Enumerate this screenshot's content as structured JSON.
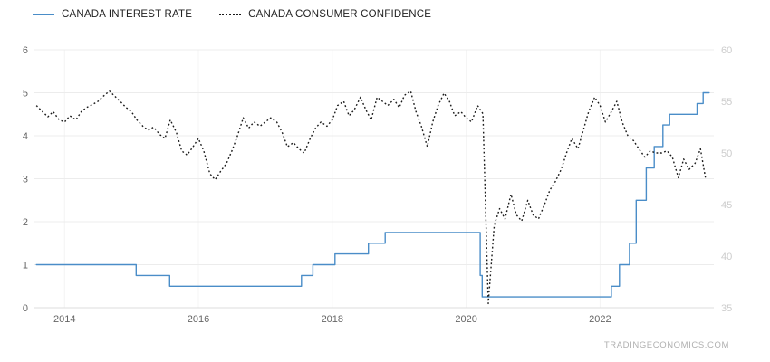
{
  "legend": {
    "items": [
      {
        "label": "CANADA INTEREST RATE",
        "color": "#4a8dc8",
        "style": "solid"
      },
      {
        "label": "CANADA CONSUMER CONFIDENCE",
        "color": "#1a1a1a",
        "style": "dotted"
      }
    ]
  },
  "watermark": "TRADINGECONOMICS.COM",
  "colors": {
    "background": "#ffffff",
    "grid": "#ececec",
    "vgrid": "#f4f4f4",
    "axis_text": "#666666",
    "right_axis_text": "#cccccc",
    "baseline": "#dddddd"
  },
  "chart_data": {
    "type": "line",
    "x_range": [
      2013.55,
      2023.7
    ],
    "x_ticks": [
      2014,
      2016,
      2018,
      2020,
      2022
    ],
    "left_axis": {
      "ticks": [
        0,
        1,
        2,
        3,
        4,
        5,
        6
      ],
      "range": [
        0,
        6
      ]
    },
    "right_axis": {
      "ticks": [
        35,
        40,
        45,
        50,
        55,
        60
      ],
      "range": [
        35,
        60
      ]
    },
    "grid": true,
    "legend_position": "top-left",
    "series": [
      {
        "name": "Canada Interest Rate",
        "axis": "left",
        "line": "step",
        "color": "#4a8dc8",
        "points": [
          [
            2013.58,
            1.0
          ],
          [
            2015.07,
            0.75
          ],
          [
            2015.57,
            0.5
          ],
          [
            2017.54,
            0.75
          ],
          [
            2017.71,
            1.0
          ],
          [
            2018.04,
            1.25
          ],
          [
            2018.54,
            1.5
          ],
          [
            2018.79,
            1.75
          ],
          [
            2020.21,
            0.75
          ],
          [
            2020.24,
            0.25
          ],
          [
            2022.17,
            0.5
          ],
          [
            2022.29,
            1.0
          ],
          [
            2022.44,
            1.5
          ],
          [
            2022.54,
            2.5
          ],
          [
            2022.69,
            3.25
          ],
          [
            2022.81,
            3.75
          ],
          [
            2022.94,
            4.25
          ],
          [
            2023.04,
            4.5
          ],
          [
            2023.45,
            4.75
          ],
          [
            2023.54,
            5.0
          ],
          [
            2023.63,
            5.0
          ]
        ]
      },
      {
        "name": "Canada Consumer Confidence",
        "axis": "right",
        "line": "dotted",
        "color": "#1a1a1a",
        "points": [
          [
            2013.58,
            54.6
          ],
          [
            2013.67,
            54.0
          ],
          [
            2013.75,
            53.5
          ],
          [
            2013.83,
            54.0
          ],
          [
            2013.92,
            53.2
          ],
          [
            2014.0,
            53.0
          ],
          [
            2014.08,
            53.6
          ],
          [
            2014.17,
            53.2
          ],
          [
            2014.25,
            54.0
          ],
          [
            2014.33,
            54.4
          ],
          [
            2014.42,
            54.7
          ],
          [
            2014.5,
            55.0
          ],
          [
            2014.58,
            55.5
          ],
          [
            2014.67,
            56.0
          ],
          [
            2014.75,
            55.5
          ],
          [
            2014.83,
            55.0
          ],
          [
            2014.92,
            54.4
          ],
          [
            2015.0,
            54.0
          ],
          [
            2015.08,
            53.2
          ],
          [
            2015.17,
            52.6
          ],
          [
            2015.25,
            52.2
          ],
          [
            2015.33,
            52.5
          ],
          [
            2015.42,
            51.8
          ],
          [
            2015.5,
            51.4
          ],
          [
            2015.58,
            53.2
          ],
          [
            2015.67,
            52.0
          ],
          [
            2015.75,
            50.2
          ],
          [
            2015.83,
            49.8
          ],
          [
            2015.92,
            50.6
          ],
          [
            2016.0,
            51.4
          ],
          [
            2016.08,
            50.2
          ],
          [
            2016.17,
            48.0
          ],
          [
            2016.25,
            47.4
          ],
          [
            2016.33,
            48.2
          ],
          [
            2016.42,
            49.0
          ],
          [
            2016.5,
            50.2
          ],
          [
            2016.58,
            51.6
          ],
          [
            2016.67,
            53.4
          ],
          [
            2016.75,
            52.4
          ],
          [
            2016.83,
            53.0
          ],
          [
            2016.92,
            52.6
          ],
          [
            2017.0,
            53.0
          ],
          [
            2017.08,
            53.4
          ],
          [
            2017.17,
            53.0
          ],
          [
            2017.25,
            52.0
          ],
          [
            2017.33,
            50.6
          ],
          [
            2017.42,
            51.0
          ],
          [
            2017.5,
            50.4
          ],
          [
            2017.58,
            50.0
          ],
          [
            2017.67,
            51.4
          ],
          [
            2017.75,
            52.4
          ],
          [
            2017.83,
            53.0
          ],
          [
            2017.92,
            52.6
          ],
          [
            2018.0,
            53.2
          ],
          [
            2018.08,
            54.6
          ],
          [
            2018.17,
            55.0
          ],
          [
            2018.25,
            53.6
          ],
          [
            2018.33,
            54.2
          ],
          [
            2018.42,
            55.4
          ],
          [
            2018.5,
            54.2
          ],
          [
            2018.58,
            53.2
          ],
          [
            2018.67,
            55.4
          ],
          [
            2018.75,
            55.0
          ],
          [
            2018.83,
            54.6
          ],
          [
            2018.92,
            55.2
          ],
          [
            2019.0,
            54.4
          ],
          [
            2019.08,
            55.6
          ],
          [
            2019.17,
            56.0
          ],
          [
            2019.25,
            54.0
          ],
          [
            2019.33,
            52.6
          ],
          [
            2019.42,
            50.6
          ],
          [
            2019.5,
            53.0
          ],
          [
            2019.58,
            54.6
          ],
          [
            2019.67,
            55.8
          ],
          [
            2019.75,
            55.0
          ],
          [
            2019.83,
            53.6
          ],
          [
            2019.92,
            54.0
          ],
          [
            2020.0,
            53.4
          ],
          [
            2020.08,
            53.0
          ],
          [
            2020.17,
            54.6
          ],
          [
            2020.25,
            53.8
          ],
          [
            2020.33,
            35.4
          ],
          [
            2020.42,
            43.0
          ],
          [
            2020.5,
            44.6
          ],
          [
            2020.58,
            43.6
          ],
          [
            2020.67,
            46.0
          ],
          [
            2020.75,
            44.0
          ],
          [
            2020.83,
            43.4
          ],
          [
            2020.92,
            45.4
          ],
          [
            2021.0,
            44.0
          ],
          [
            2021.08,
            43.6
          ],
          [
            2021.17,
            45.0
          ],
          [
            2021.25,
            46.4
          ],
          [
            2021.33,
            47.2
          ],
          [
            2021.42,
            48.4
          ],
          [
            2021.5,
            50.0
          ],
          [
            2021.58,
            51.4
          ],
          [
            2021.67,
            50.4
          ],
          [
            2021.75,
            52.2
          ],
          [
            2021.83,
            54.0
          ],
          [
            2021.92,
            55.4
          ],
          [
            2022.0,
            54.6
          ],
          [
            2022.08,
            53.0
          ],
          [
            2022.17,
            54.0
          ],
          [
            2022.25,
            55.0
          ],
          [
            2022.33,
            53.0
          ],
          [
            2022.42,
            51.6
          ],
          [
            2022.5,
            51.2
          ],
          [
            2022.58,
            50.4
          ],
          [
            2022.67,
            49.6
          ],
          [
            2022.75,
            50.2
          ],
          [
            2022.83,
            50.0
          ],
          [
            2022.92,
            50.0
          ],
          [
            2023.0,
            50.2
          ],
          [
            2023.08,
            49.6
          ],
          [
            2023.17,
            47.6
          ],
          [
            2023.25,
            49.4
          ],
          [
            2023.33,
            48.4
          ],
          [
            2023.42,
            49.0
          ],
          [
            2023.5,
            50.4
          ],
          [
            2023.58,
            47.4
          ]
        ]
      }
    ]
  }
}
